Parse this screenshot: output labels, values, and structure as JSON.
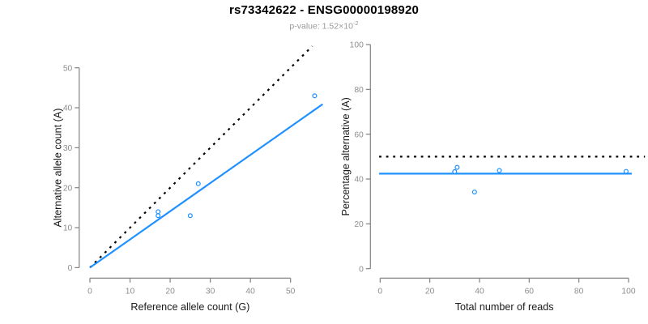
{
  "header": {
    "title": "rs73342622 - ENSG00000198920",
    "subtitle_prefix": "p-value: 1.52×10",
    "subtitle_exponent": "-2"
  },
  "colors": {
    "accent_blue": "#1E90FF",
    "axis_gray": "#828282",
    "tick_label_gray": "#8E8E8E",
    "axis_title_black": "#1A1A1A",
    "identity_line_black": "#000000",
    "subtitle_gray": "#999999",
    "point_fill_white": "#FFFFFF"
  },
  "chart_data": [
    {
      "type": "scatter",
      "name": "allele-counts-plot",
      "xlabel": "Reference allele count (G)",
      "ylabel": "Alternative allele count (A)",
      "xticks": [
        0,
        10,
        20,
        30,
        40,
        50
      ],
      "yticks": [
        0,
        10,
        20,
        30,
        40,
        50
      ],
      "xlim": [
        0,
        58.2
      ],
      "ylim": [
        0,
        58.2
      ],
      "grid": false,
      "legend": "none",
      "points": [
        [
          17,
          13
        ],
        [
          17,
          14
        ],
        [
          25,
          13
        ],
        [
          27,
          21
        ],
        [
          56,
          43
        ]
      ],
      "lines": [
        {
          "name": "identity-line",
          "style": "dotted",
          "color": "#000000",
          "x1": 0,
          "y1": 0,
          "x2": 55.4,
          "y2": 55.4
        },
        {
          "name": "fit-line",
          "style": "solid",
          "color": "#1E90FF",
          "x1": 0,
          "y1": 0,
          "x2": 58.0,
          "y2": 40.9
        }
      ]
    },
    {
      "type": "scatter",
      "name": "percentage-alternative-plot",
      "xlabel": "Total number of reads",
      "ylabel": "Percentage alternative (A)",
      "xticks": [
        0,
        20,
        40,
        60,
        80,
        100
      ],
      "yticks": [
        0,
        20,
        40,
        60,
        80,
        100
      ],
      "xlim": [
        0,
        106.6
      ],
      "ylim": [
        0,
        100
      ],
      "grid": false,
      "legend": "none",
      "points": [
        [
          30,
          43.3
        ],
        [
          31,
          45.2
        ],
        [
          38,
          34.2
        ],
        [
          48,
          43.8
        ],
        [
          99,
          43.4
        ]
      ],
      "lines": [
        {
          "name": "expected-50-percent-line",
          "style": "dotted",
          "color": "#000000",
          "x1": -0.4,
          "y1": 50,
          "x2": 106.6,
          "y2": 50
        },
        {
          "name": "mean-percentage-line",
          "style": "solid",
          "color": "#1E90FF",
          "x1": -0.4,
          "y1": 42.4,
          "x2": 101.3,
          "y2": 42.4
        }
      ]
    }
  ]
}
